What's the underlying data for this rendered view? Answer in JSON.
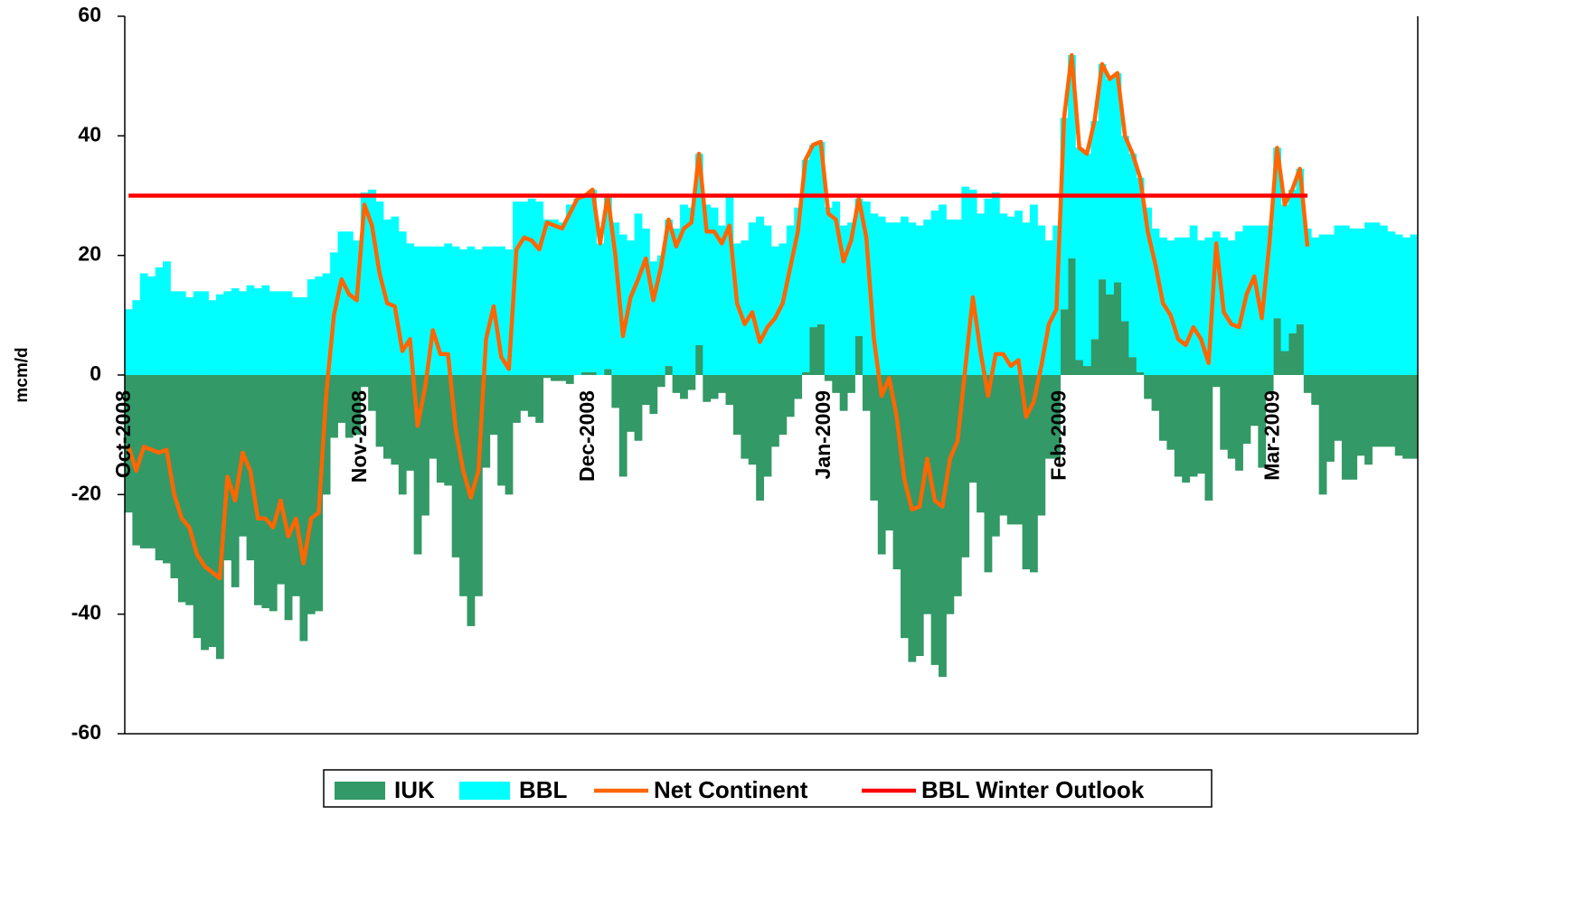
{
  "chart_data": {
    "type": "bar",
    "stacked": true,
    "y_label": "mcm/d",
    "ylim": [
      -60,
      60
    ],
    "yticks": [
      -60,
      -40,
      -20,
      0,
      20,
      40,
      60
    ],
    "legend": "bottom",
    "categories": [
      "Oct-2008",
      null,
      null,
      null,
      null,
      null,
      null,
      null,
      null,
      null,
      null,
      null,
      null,
      null,
      null,
      null,
      null,
      null,
      null,
      null,
      null,
      null,
      null,
      null,
      null,
      null,
      null,
      null,
      null,
      null,
      null,
      "Nov-2008",
      null,
      null,
      null,
      null,
      null,
      null,
      null,
      null,
      null,
      null,
      null,
      null,
      null,
      null,
      null,
      null,
      null,
      null,
      null,
      null,
      null,
      null,
      null,
      null,
      null,
      null,
      null,
      null,
      null,
      "Dec-2008",
      null,
      null,
      null,
      null,
      null,
      null,
      null,
      null,
      null,
      null,
      null,
      null,
      null,
      null,
      null,
      null,
      null,
      null,
      null,
      null,
      null,
      null,
      null,
      null,
      null,
      null,
      null,
      null,
      null,
      null,
      "Jan-2009",
      null,
      null,
      null,
      null,
      null,
      null,
      null,
      null,
      null,
      null,
      null,
      null,
      null,
      null,
      null,
      null,
      null,
      null,
      null,
      null,
      null,
      null,
      null,
      null,
      null,
      null,
      null,
      null,
      null,
      null,
      "Feb-2009",
      null,
      null,
      null,
      null,
      null,
      null,
      null,
      null,
      null,
      null,
      null,
      null,
      null,
      null,
      null,
      null,
      null,
      null,
      null,
      null,
      null,
      null,
      null,
      null,
      null,
      null,
      null,
      "Mar-2009",
      null,
      null,
      null,
      null,
      null,
      null,
      null,
      null,
      null,
      null,
      null,
      null,
      null,
      null,
      null,
      null,
      null,
      null
    ],
    "series": [
      {
        "name": "IUK",
        "type": "bar",
        "color": "#339966",
        "values": [
          -23,
          -28.5,
          -29,
          -29,
          -31,
          -31.5,
          -34,
          -38,
          -38.5,
          -44,
          -46,
          -45.5,
          -47.5,
          -31,
          -35.5,
          -27,
          -31,
          -38.5,
          -39,
          -39.5,
          -35,
          -41,
          -37,
          -44.5,
          -40,
          -39.5,
          -20,
          -10.5,
          -8,
          -10.5,
          -10,
          -2,
          -6,
          -12,
          -14,
          -15,
          -20,
          -16,
          -30,
          -23.5,
          -14,
          -18,
          -18.5,
          -30.5,
          -37,
          -42,
          -37,
          -15.5,
          -10,
          -18.5,
          -20,
          -8,
          -6,
          -7,
          -8,
          -0.5,
          -1,
          -1,
          -1.5,
          0,
          0.5,
          0.5,
          0,
          1,
          -5.5,
          -17,
          -9.5,
          -11,
          -5,
          -6.5,
          -2,
          1.5,
          -3,
          -4,
          -2.5,
          5,
          -4.5,
          -4,
          -3,
          -5,
          -10,
          -14,
          -15,
          -21,
          -17,
          -12,
          -10,
          -7,
          -4,
          0.5,
          8,
          8.5,
          -1,
          -3,
          -6,
          -3,
          6.5,
          -6,
          -21,
          -30,
          -26,
          -32.5,
          -44,
          -48,
          -47,
          -40,
          -48.5,
          -50.5,
          -40,
          -37,
          -30.5,
          -18,
          -23,
          -33,
          -27,
          -23.5,
          -25,
          -25,
          -32.5,
          -33,
          -23.5,
          -14,
          -14,
          11,
          19.5,
          2.5,
          1.5,
          6,
          16,
          13.5,
          15.5,
          9,
          3,
          0.5,
          -4,
          -6,
          -11,
          -12.5,
          -17,
          -18,
          -17,
          -16.5,
          -21,
          -2,
          -12.5,
          -14,
          -16,
          -11.5,
          -8.5,
          -15.5,
          -3,
          9.5,
          4,
          7,
          8.5,
          -3,
          -5,
          -20,
          -14.5,
          -11,
          -17.5,
          -17.5,
          -13.5,
          -15,
          -12,
          -12,
          -12,
          -13.5,
          -14,
          -14
        ]
      },
      {
        "name": "BBL",
        "type": "bar",
        "color": "#00ffff",
        "values": [
          11,
          12.5,
          17,
          16.5,
          18,
          19,
          14,
          14,
          13,
          14,
          14,
          12.5,
          13.5,
          14,
          14.5,
          14,
          15,
          14.5,
          15,
          14,
          14,
          14,
          13,
          13,
          16,
          16.5,
          17,
          20.5,
          24,
          24,
          22.5,
          30.5,
          31,
          29,
          26,
          26.5,
          24,
          22,
          21.5,
          21.5,
          21.5,
          21.5,
          22,
          21.5,
          21,
          21.5,
          21,
          21.5,
          21.5,
          21.5,
          21,
          29,
          29,
          29.5,
          29,
          26,
          26,
          25.5,
          28.5,
          29.5,
          29.5,
          30.5,
          22,
          29,
          25.5,
          23.5,
          22.5,
          27,
          24.5,
          19,
          20,
          24.5,
          24.5,
          28.5,
          28,
          32,
          28.5,
          28,
          25,
          30,
          22,
          22.5,
          25.5,
          26.5,
          25,
          21.5,
          22,
          25,
          28,
          35.5,
          30.5,
          30.5,
          28,
          29,
          25,
          25.5,
          23,
          29,
          27,
          26.5,
          25.5,
          25.5,
          26.5,
          25.5,
          25,
          26,
          27.5,
          28.5,
          26,
          26,
          31.5,
          31,
          27,
          29.5,
          30.5,
          27,
          26.5,
          27.5,
          25.5,
          28.5,
          25,
          22.5,
          25,
          32,
          34,
          35.5,
          35.5,
          36.5,
          36,
          36,
          35,
          31,
          34,
          32.5,
          28,
          24.5,
          23,
          22.5,
          23,
          23,
          25,
          22.5,
          23,
          24,
          23,
          22.5,
          24,
          25,
          25,
          25,
          25,
          28.5,
          24.5,
          24,
          26,
          24.5,
          23,
          23.5,
          23.5,
          25,
          25,
          24.5,
          24.5,
          25.5,
          25.5,
          25,
          24,
          23.5,
          23,
          23.5
        ]
      },
      {
        "name": "Net Continent",
        "type": "line",
        "color": "#ff6600",
        "values": [
          -12,
          -16,
          -12,
          -12.5,
          -13,
          -12.5,
          -20,
          -24,
          -25.5,
          -30,
          -32,
          -33,
          -34,
          -17,
          -21,
          -13,
          -16,
          -24,
          -24,
          -25.5,
          -21,
          -27,
          -24,
          -31.5,
          -24,
          -23,
          -3,
          10,
          16,
          13.5,
          12.5,
          28.5,
          25,
          17,
          12,
          11.5,
          4,
          6,
          -8.5,
          -2,
          7.5,
          3.5,
          3.5,
          -9,
          -16,
          -20.5,
          -16,
          6,
          11.5,
          3,
          1,
          21,
          23,
          22.5,
          21,
          25.5,
          25,
          24.5,
          27,
          29.5,
          30,
          31,
          22,
          30,
          20,
          6.5,
          13,
          16,
          19.5,
          12.5,
          18,
          26,
          21.5,
          24.5,
          25.5,
          37,
          24,
          24,
          22,
          25,
          12,
          8.5,
          10.5,
          5.5,
          8,
          9.5,
          12,
          18,
          24,
          36,
          38.5,
          39,
          27,
          26,
          19,
          22.5,
          29.5,
          23,
          6,
          -3.5,
          -0.5,
          -7,
          -17.5,
          -22.5,
          -22,
          -14,
          -21,
          -22,
          -14,
          -11,
          1,
          13,
          4,
          -3.5,
          3.5,
          3.5,
          1.5,
          2.5,
          -7,
          -4.5,
          1.5,
          8.5,
          11,
          43,
          53.5,
          38,
          37,
          42.5,
          52,
          49.5,
          50.5,
          40,
          37,
          33,
          24,
          18.5,
          12,
          10,
          6,
          5,
          8,
          6,
          2,
          22,
          10.5,
          8.5,
          8,
          13.5,
          16.5,
          9.5,
          22,
          38,
          28.5,
          31,
          34.5,
          21.5,
          null,
          null,
          null,
          null,
          null,
          null,
          null,
          null,
          null,
          null,
          null,
          null,
          null,
          null
        ]
      },
      {
        "name": "BBL Winter Outlook",
        "type": "line",
        "color": "#ff0000",
        "values": [
          30,
          30,
          30,
          30,
          30,
          30,
          30,
          30,
          30,
          30,
          30,
          30,
          30,
          30,
          30,
          30,
          30,
          30,
          30,
          30,
          30,
          30,
          30,
          30,
          30,
          30,
          30,
          30,
          30,
          30,
          30,
          30,
          30,
          30,
          30,
          30,
          30,
          30,
          30,
          30,
          30,
          30,
          30,
          30,
          30,
          30,
          30,
          30,
          30,
          30,
          30,
          30,
          30,
          30,
          30,
          30,
          30,
          30,
          30,
          30,
          30,
          30,
          30,
          30,
          30,
          30,
          30,
          30,
          30,
          30,
          30,
          30,
          30,
          30,
          30,
          30,
          30,
          30,
          30,
          30,
          30,
          30,
          30,
          30,
          30,
          30,
          30,
          30,
          30,
          30,
          30,
          30,
          30,
          30,
          30,
          30,
          30,
          30,
          30,
          30,
          30,
          30,
          30,
          30,
          30,
          30,
          30,
          30,
          30,
          30,
          30,
          30,
          30,
          30,
          30,
          30,
          30,
          30,
          30,
          30,
          30,
          30,
          30,
          30,
          30,
          30,
          30,
          30,
          30,
          30,
          30,
          30,
          30,
          30,
          30,
          30,
          30,
          30,
          30,
          30,
          30,
          30,
          30,
          30,
          30,
          30,
          30,
          30,
          30,
          30,
          30,
          30,
          30,
          30,
          30,
          30,
          null,
          null,
          null,
          null,
          null,
          null,
          null,
          null,
          null,
          null,
          null,
          null,
          null,
          null
        ]
      }
    ]
  }
}
